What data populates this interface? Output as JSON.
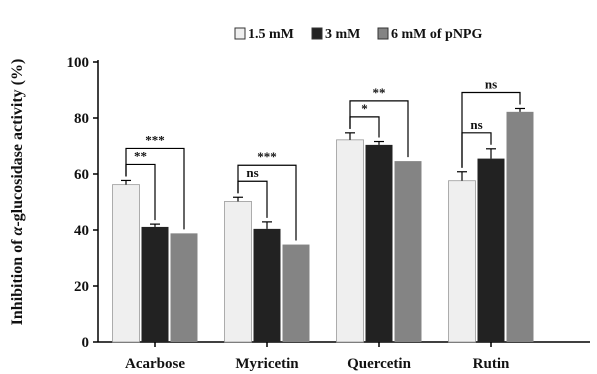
{
  "chart_data": {
    "type": "bar",
    "title": "",
    "xlabel": "",
    "ylabel": "Inhibition of α-glucosidase activity (%)",
    "ylabel_prefix": "Inhibition of ",
    "ylabel_greek": "α",
    "ylabel_suffix": "-glucosidase activity (%)",
    "ylim": [
      0,
      100
    ],
    "yticks": [
      0,
      20,
      40,
      60,
      80,
      100
    ],
    "grid": false,
    "legend_position": "top",
    "categories": [
      "Acarbose",
      "Myricetin",
      "Quercetin",
      "Rutin"
    ],
    "series": [
      {
        "name": "1.5 mM",
        "values": [
          56.2,
          50.2,
          72.2,
          57.6
        ],
        "errors": [
          1.5,
          1.5,
          2.5,
          3.2
        ],
        "color": "#efefef"
      },
      {
        "name": "3 mM",
        "values": [
          41.1,
          40.4,
          70.4,
          65.5
        ],
        "errors": [
          1.0,
          2.5,
          1.2,
          3.5
        ],
        "color": "#222222"
      },
      {
        "name": "6 mM of pNPG",
        "values": [
          38.8,
          34.8,
          64.6,
          82.2
        ],
        "errors": [
          0,
          0,
          0,
          1.2
        ],
        "color": "#848484"
      }
    ],
    "significance": [
      {
        "category": "Acarbose",
        "comparisons": [
          {
            "target_series": 1,
            "label": "**"
          },
          {
            "target_series": 2,
            "label": "***"
          }
        ]
      },
      {
        "category": "Myricetin",
        "comparisons": [
          {
            "target_series": 1,
            "label": "ns"
          },
          {
            "target_series": 2,
            "label": "***"
          }
        ]
      },
      {
        "category": "Quercetin",
        "comparisons": [
          {
            "target_series": 1,
            "label": "*"
          },
          {
            "target_series": 2,
            "label": "**"
          }
        ]
      },
      {
        "category": "Rutin",
        "comparisons": [
          {
            "target_series": 1,
            "label": "ns"
          },
          {
            "target_series": 2,
            "label": "ns"
          }
        ]
      }
    ]
  }
}
